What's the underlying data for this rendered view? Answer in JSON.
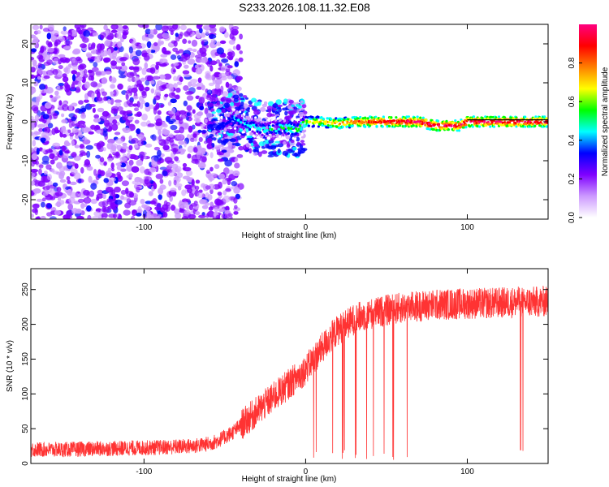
{
  "title": "S233.2026.108.11.32.E08",
  "chart_data": [
    {
      "type": "heatmap",
      "xlabel": "Height of straight line (km)",
      "ylabel": "Frequency (Hz)",
      "xlim": [
        -170,
        150
      ],
      "ylim": [
        -25,
        25
      ],
      "xticks": [
        -100,
        0,
        100
      ],
      "yticks": [
        -20,
        -10,
        0,
        10,
        20
      ],
      "colorbar": {
        "label": "Normalized spectral amplitude",
        "range": [
          0,
          1
        ],
        "ticks": [
          "0.0",
          "0.2",
          "0.4",
          "0.6",
          "0.8"
        ],
        "colors": [
          "#ffffff",
          "#cc99ff",
          "#7f00ff",
          "#0000ff",
          "#00ffff",
          "#00ff00",
          "#ffff00",
          "#ff8000",
          "#ff0000",
          "#ff0080"
        ]
      },
      "ridge": {
        "x": [
          -55,
          -45,
          -35,
          -25,
          -15,
          -5,
          0,
          10,
          20,
          30,
          40,
          50,
          60,
          70,
          80,
          90,
          95,
          100,
          110,
          120,
          130,
          140,
          150
        ],
        "y": [
          -2,
          1,
          -1,
          -2,
          -1.5,
          -2,
          0,
          0,
          -0.5,
          0,
          0,
          0,
          0,
          0,
          -1,
          -1,
          -1,
          0,
          0,
          0,
          0,
          0,
          0
        ]
      }
    },
    {
      "type": "line",
      "xlabel": "Height of straight line (km)",
      "ylabel": "SNR (10 * v/v)",
      "xlim": [
        -170,
        150
      ],
      "ylim": [
        0,
        280
      ],
      "xticks": [
        -100,
        0,
        100
      ],
      "yticks": [
        0,
        50,
        100,
        150,
        200,
        250
      ],
      "color": "#ff3333",
      "series": [
        {
          "x": [
            -170,
            -150,
            -130,
            -110,
            -90,
            -70,
            -60,
            -55,
            -50,
            -45,
            -40,
            -35,
            -30,
            -25,
            -20,
            -15,
            -10,
            -5,
            0,
            5,
            10,
            15,
            20,
            25,
            30,
            35,
            40,
            50,
            60,
            70,
            80,
            90,
            100,
            110,
            120,
            130,
            140,
            150
          ],
          "y": [
            20,
            20,
            21,
            22,
            23,
            25,
            28,
            32,
            38,
            45,
            55,
            65,
            75,
            85,
            95,
            105,
            115,
            125,
            135,
            150,
            165,
            180,
            192,
            200,
            207,
            212,
            215,
            220,
            224,
            226,
            228,
            229,
            230,
            230,
            231,
            232,
            232,
            233
          ]
        }
      ]
    }
  ]
}
